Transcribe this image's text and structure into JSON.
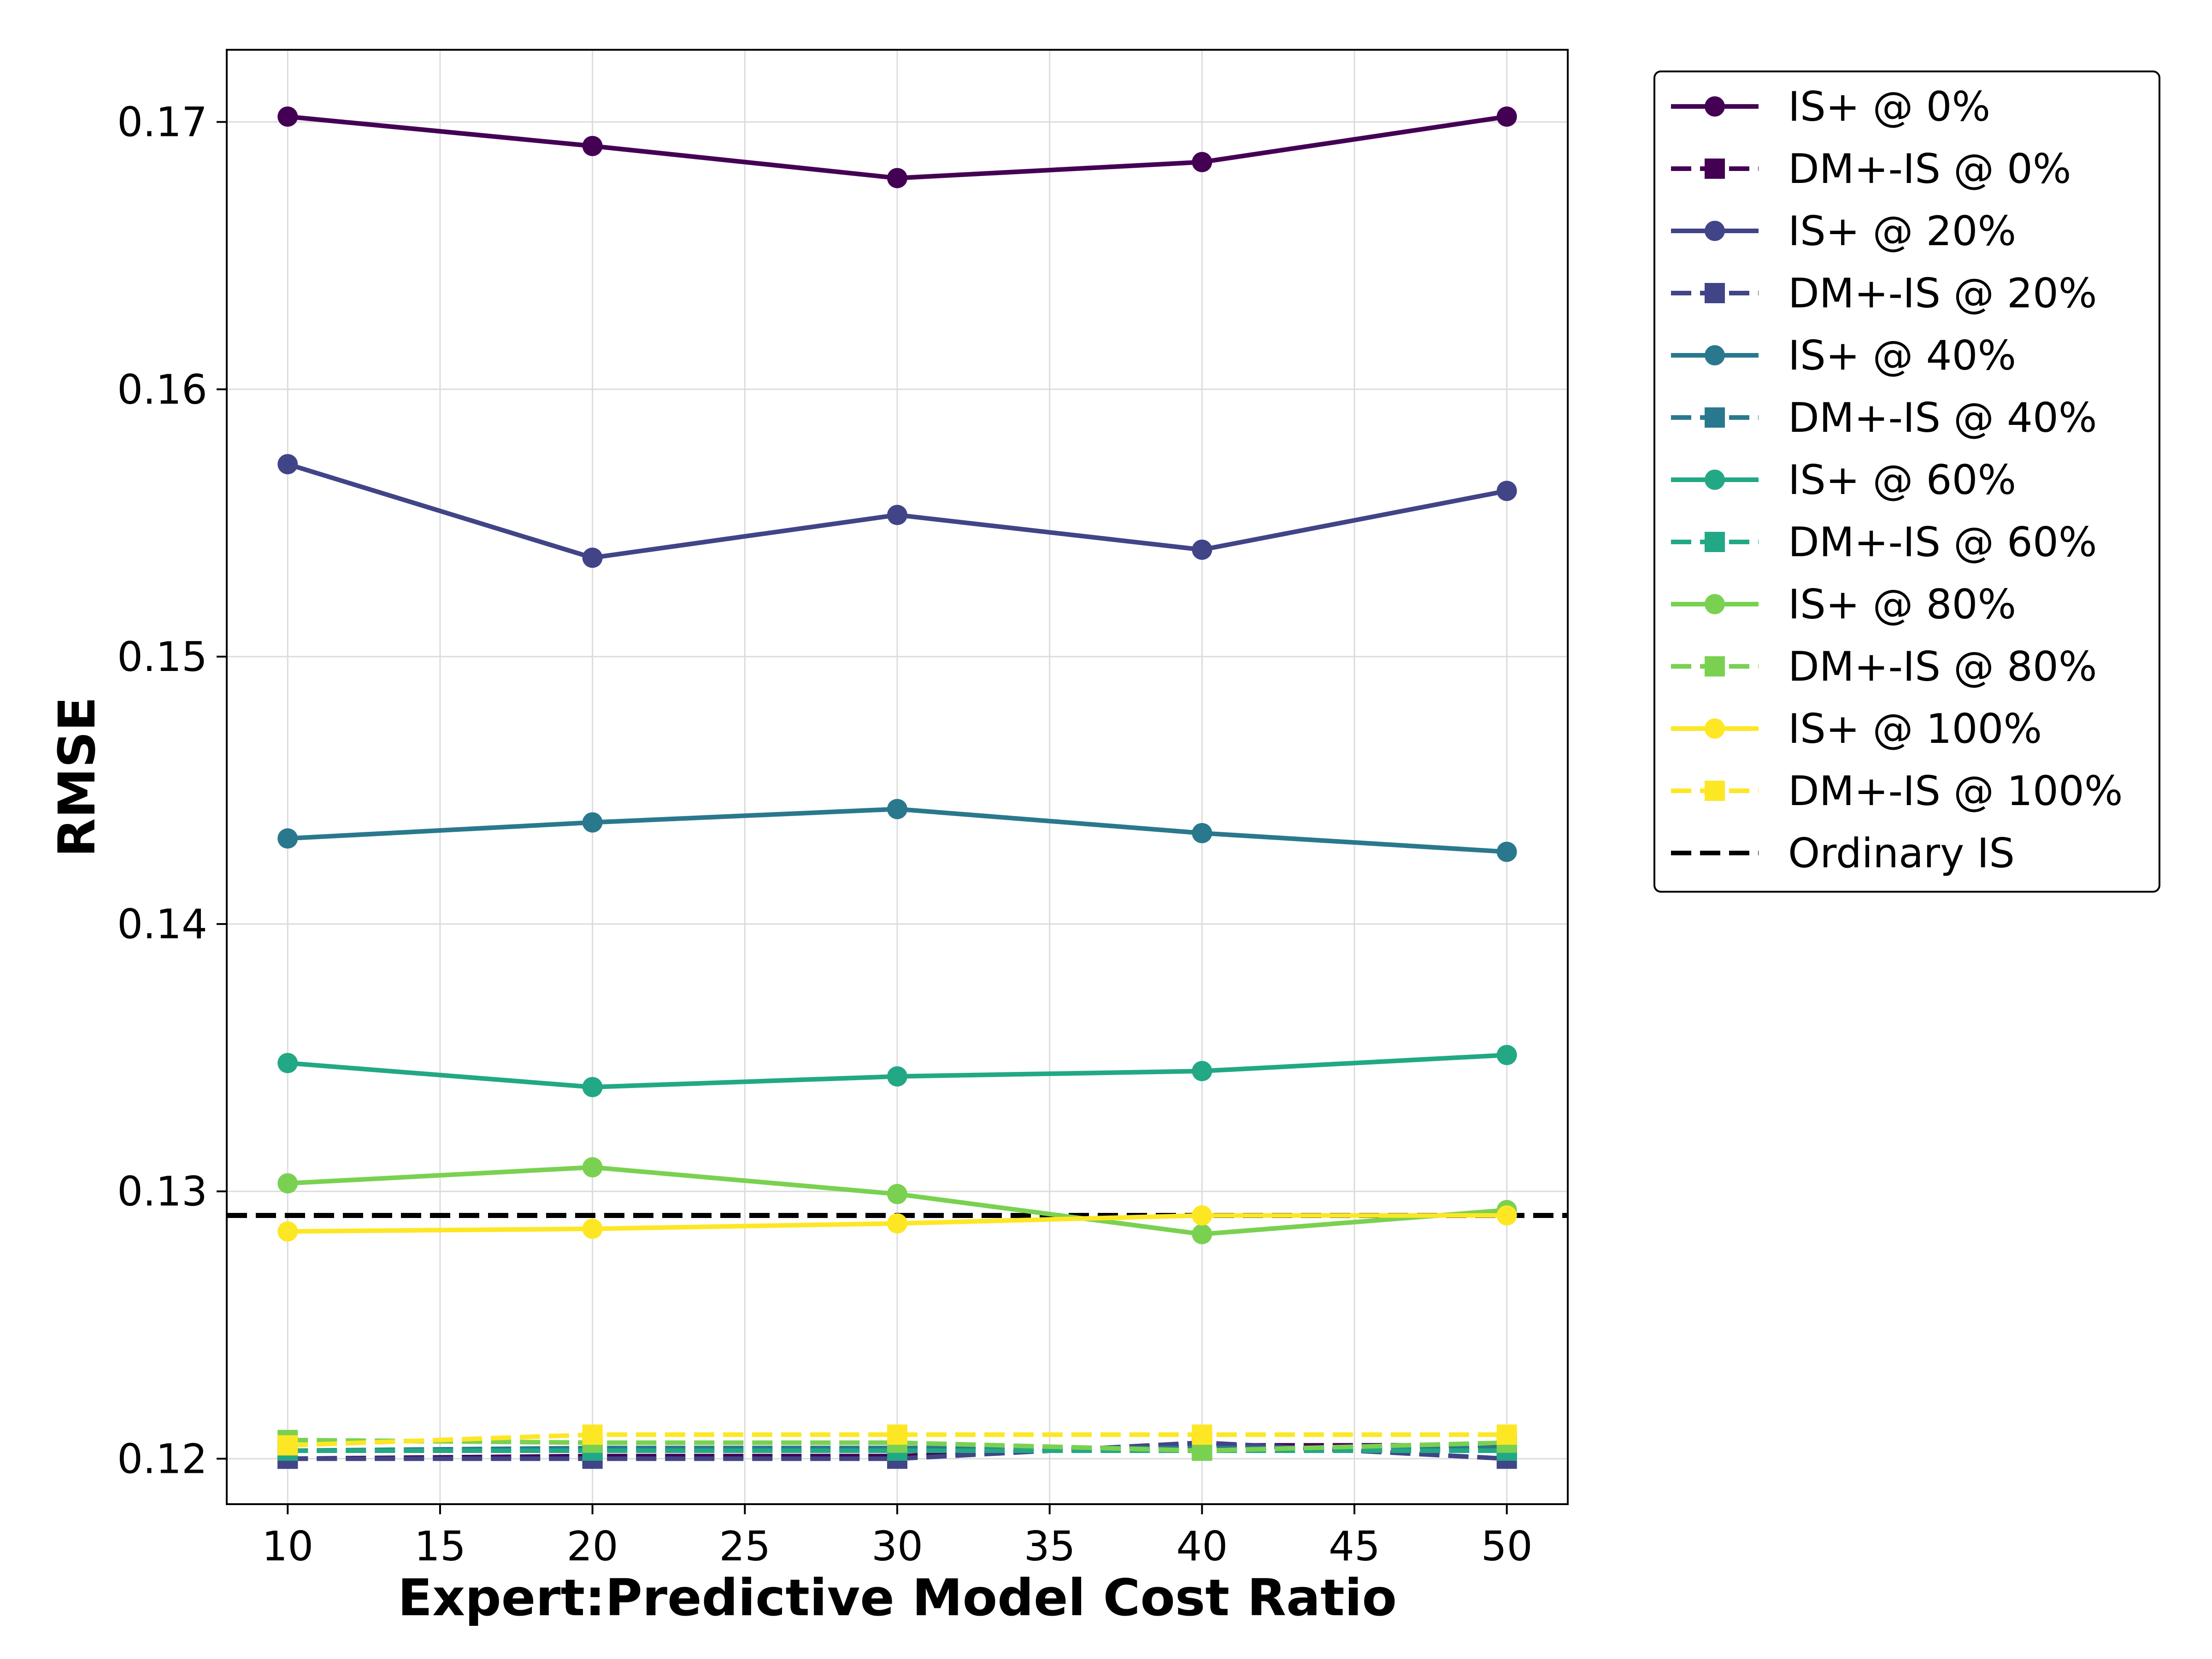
{
  "chart_data": {
    "type": "line",
    "title": "",
    "xlabel": "Expert:Predictive Model Cost Ratio",
    "ylabel": "RMSE",
    "xlim": [
      8,
      52
    ],
    "ylim": [
      0.1183,
      0.1727
    ],
    "grid": true,
    "legend_position": "outside-right-top",
    "x": [
      10,
      20,
      30,
      40,
      50
    ],
    "x_ticks": [
      "10",
      "15",
      "20",
      "25",
      "30",
      "35",
      "40",
      "45",
      "50"
    ],
    "y_ticks": [
      "0.12",
      "0.13",
      "0.14",
      "0.15",
      "0.16",
      "0.17"
    ],
    "series": [
      {
        "name": "IS+ @ 0%",
        "color": "#440154",
        "style": "solid",
        "marker": "circle",
        "values": [
          0.1702,
          0.1691,
          0.1679,
          0.1685,
          0.1702
        ]
      },
      {
        "name": "DM+-IS @ 0%",
        "color": "#440154",
        "style": "dashed",
        "marker": "square",
        "values": [
          0.12,
          0.1201,
          0.1201,
          0.1205,
          0.1205
        ]
      },
      {
        "name": "IS+ @ 20%",
        "color": "#414487",
        "style": "solid",
        "marker": "circle",
        "values": [
          0.1572,
          0.1537,
          0.1553,
          0.154,
          0.1562
        ]
      },
      {
        "name": "DM+-IS @ 20%",
        "color": "#414487",
        "style": "dashed",
        "marker": "square",
        "values": [
          0.12,
          0.12,
          0.12,
          0.1206,
          0.12
        ]
      },
      {
        "name": "IS+ @ 40%",
        "color": "#2a788e",
        "style": "solid",
        "marker": "circle",
        "values": [
          0.1432,
          0.1438,
          0.1443,
          0.1434,
          0.1427
        ]
      },
      {
        "name": "DM+-IS @ 40%",
        "color": "#2a788e",
        "style": "dashed",
        "marker": "square",
        "values": [
          0.1203,
          0.1204,
          0.1204,
          0.1204,
          0.1204
        ]
      },
      {
        "name": "IS+ @ 60%",
        "color": "#22a884",
        "style": "solid",
        "marker": "circle",
        "values": [
          0.1348,
          0.1339,
          0.1343,
          0.1345,
          0.1351
        ]
      },
      {
        "name": "DM+-IS @ 60%",
        "color": "#22a884",
        "style": "dashed",
        "marker": "square",
        "values": [
          0.1203,
          0.1203,
          0.1203,
          0.1203,
          0.1203
        ]
      },
      {
        "name": "IS+ @ 80%",
        "color": "#7ad151",
        "style": "solid",
        "marker": "circle",
        "values": [
          0.1303,
          0.1309,
          0.1299,
          0.1284,
          0.1293
        ]
      },
      {
        "name": "DM+-IS @ 80%",
        "color": "#7ad151",
        "style": "dashed",
        "marker": "square",
        "values": [
          0.1207,
          0.1206,
          0.1206,
          0.1203,
          0.1206
        ]
      },
      {
        "name": "IS+ @ 100%",
        "color": "#fde725",
        "style": "solid",
        "marker": "circle",
        "values": [
          0.1285,
          0.1286,
          0.1288,
          0.1291,
          0.1291
        ]
      },
      {
        "name": "DM+-IS @ 100%",
        "color": "#fde725",
        "style": "dashed",
        "marker": "square",
        "values": [
          0.1205,
          0.1209,
          0.1209,
          0.1209,
          0.1209
        ]
      }
    ],
    "reference_line": {
      "name": "Ordinary IS",
      "value": 0.1291,
      "color": "#000000",
      "style": "dashed"
    }
  }
}
